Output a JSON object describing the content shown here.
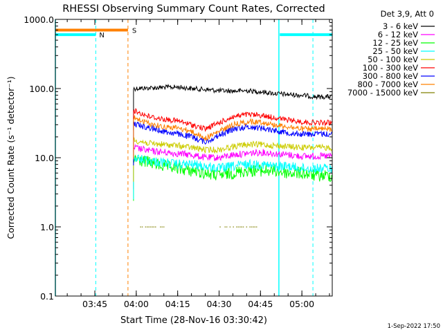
{
  "chart_data": {
    "type": "line",
    "title": "RHESSI Observing Summary Count Rates, Corrected",
    "xlabel": "Start Time (28-Nov-16 03:30:42)",
    "ylabel": "Corrected Count Rate (s⁻¹ detector⁻¹)",
    "y_scale": "log",
    "ylim": [
      0.1,
      1000.0
    ],
    "xlim": [
      "03:30:42",
      "05:11:00"
    ],
    "x_ticks": [
      "03:45",
      "04:00",
      "04:15",
      "04:30",
      "04:45",
      "05:00"
    ],
    "y_ticks": [
      "0.1",
      "1.0",
      "10.0",
      "100.0",
      "1000.0"
    ],
    "legend_title": "Det 3,9, Att 0",
    "legend_position": "right",
    "footer": "1-Sep-2022 17:50",
    "x": [
      "03:59",
      "04:05",
      "04:10",
      "04:15",
      "04:20",
      "04:25",
      "04:30",
      "04:35",
      "04:40",
      "04:45",
      "04:50",
      "04:55",
      "05:00",
      "05:05"
    ],
    "series": [
      {
        "name": "3 - 6 keV",
        "color": "#000000",
        "values": [
          100,
          102,
          104,
          105,
          100,
          97,
          93,
          92,
          93,
          90,
          85,
          82,
          80,
          76
        ]
      },
      {
        "name": "6 - 12 keV",
        "color": "#ff00ff",
        "values": [
          14,
          12.5,
          12,
          11.5,
          11,
          10,
          10,
          11,
          11.5,
          12,
          11.5,
          11,
          10.5,
          10.5
        ]
      },
      {
        "name": "12 - 25 keV",
        "color": "#00ff00",
        "values": [
          9.5,
          8.5,
          7.5,
          7,
          6.5,
          6,
          5.5,
          6,
          6.5,
          6.5,
          6.5,
          6,
          6,
          5.5
        ]
      },
      {
        "name": "25 - 50 keV",
        "color": "#00ffff",
        "values": [
          10,
          9,
          8.5,
          8,
          8,
          7.5,
          7,
          7.5,
          8,
          8,
          7.5,
          7.5,
          7,
          7
        ]
      },
      {
        "name": "50 - 100 keV",
        "color": "#cccc00",
        "values": [
          18,
          16,
          15.5,
          15,
          14,
          13,
          13,
          14.5,
          15.5,
          15.5,
          15,
          14.5,
          14,
          14
        ]
      },
      {
        "name": "100 - 300 keV",
        "color": "#ff0000",
        "values": [
          48,
          39,
          36,
          34,
          30,
          26,
          32,
          39,
          42,
          41,
          38,
          35,
          33,
          32
        ]
      },
      {
        "name": "300 - 800 keV",
        "color": "#0000ff",
        "values": [
          31,
          27,
          24,
          22,
          20,
          17,
          21,
          26,
          28,
          27,
          25,
          23,
          22,
          22
        ]
      },
      {
        "name": "800 - 7000 keV",
        "color": "#ff8000",
        "values": [
          38,
          31,
          28,
          27,
          24,
          19,
          24,
          30,
          33,
          33,
          30,
          28,
          26,
          26
        ]
      },
      {
        "name": "7000 - 15000 keV",
        "color": "#808000",
        "values": [
          1.0,
          1.0,
          1.0,
          null,
          null,
          null,
          1.0,
          1.0,
          1.0,
          1.0,
          null,
          null,
          null,
          null
        ]
      }
    ],
    "flags": [
      {
        "label": "N",
        "color": "#00ffff",
        "value": 600,
        "segments": [
          [
            "03:30:42",
            "03:45:20"
          ],
          [
            "04:52:00",
            "05:11:00"
          ]
        ]
      },
      {
        "label": "S",
        "color": "#ff8000",
        "value": 700,
        "segments": [
          [
            "03:30:42",
            "03:57:00"
          ]
        ]
      }
    ],
    "markers": [
      {
        "label": "N",
        "color": "#00ffff",
        "times": [
          "03:30:42",
          "03:45:20",
          "04:51:40",
          "05:04:00"
        ]
      },
      {
        "label": "S",
        "color": "#ff8000",
        "times": [
          "03:57:00"
        ]
      }
    ]
  }
}
